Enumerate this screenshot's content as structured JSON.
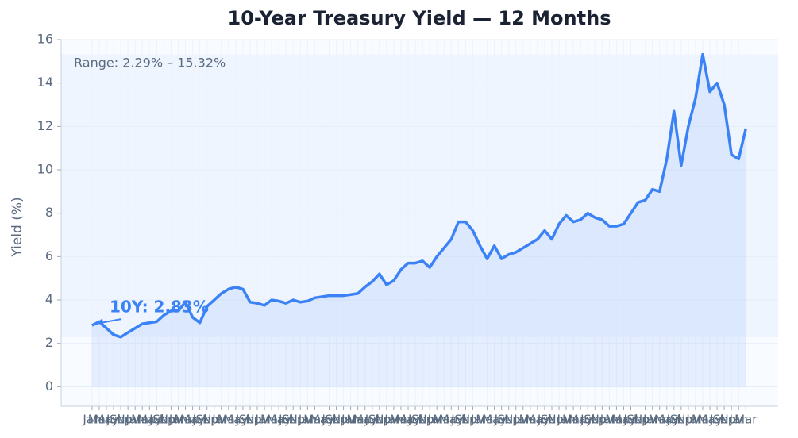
{
  "chart_data": {
    "type": "line",
    "title": "10-Year Treasury Yield — 12 Months",
    "y_label": "Yield (%)",
    "range_note": "Range: 2.29% – 15.32%",
    "annotation": "10Y: 2.83%",
    "band": [
      2.29,
      15.32
    ],
    "categories": [
      "Jan",
      "Mar",
      "May",
      "Jul",
      "Sep",
      "Nov",
      "Jan",
      "Mar",
      "May",
      "Jul",
      "Sep",
      "Nov",
      "Jan",
      "Mar",
      "May",
      "Jul",
      "Sep",
      "Nov",
      "Jan",
      "Mar",
      "May",
      "Jul",
      "Sep",
      "Nov",
      "Jan",
      "Mar",
      "May",
      "Jul",
      "Sep",
      "Nov",
      "Jan",
      "Mar",
      "May",
      "Jul",
      "Sep",
      "Nov",
      "Jan",
      "Mar",
      "May",
      "Jul",
      "Sep",
      "Nov",
      "Jan",
      "Mar",
      "May",
      "Jul",
      "Sep",
      "Nov",
      "Jan",
      "Mar",
      "May",
      "Jul",
      "Sep",
      "Nov",
      "Jan",
      "Mar",
      "May",
      "Jul",
      "Sep",
      "Nov",
      "Jan",
      "Mar",
      "May",
      "Jul",
      "Sep",
      "Nov",
      "Jan",
      "Mar",
      "May",
      "Jul",
      "Sep",
      "Nov",
      "Jan",
      "Mar",
      "May",
      "Jul",
      "Sep",
      "Nov",
      "Jan",
      "Mar",
      "May",
      "Jul",
      "Sep",
      "Nov",
      "Jan",
      "Mar",
      "May",
      "Jul",
      "Sep",
      "Nov",
      "Jan",
      "Mar"
    ],
    "series": [
      {
        "name": "10Y",
        "color": "#3b82f6",
        "values": [
          2.83,
          3.0,
          2.7,
          2.4,
          2.29,
          2.5,
          2.7,
          2.9,
          2.95,
          3.0,
          3.3,
          3.5,
          3.5,
          3.9,
          3.2,
          2.95,
          3.7,
          4.0,
          4.3,
          4.5,
          4.6,
          4.5,
          3.9,
          3.85,
          3.75,
          4.0,
          3.95,
          3.85,
          4.0,
          3.9,
          3.95,
          4.1,
          4.15,
          4.2,
          4.2,
          4.2,
          4.25,
          4.3,
          4.6,
          4.85,
          5.2,
          4.7,
          4.9,
          5.4,
          5.7,
          5.7,
          5.8,
          5.5,
          6.0,
          6.4,
          6.8,
          7.6,
          7.6,
          7.2,
          6.5,
          5.9,
          6.5,
          5.9,
          6.1,
          6.2,
          6.4,
          6.6,
          6.8,
          7.2,
          6.8,
          7.5,
          7.9,
          7.6,
          7.7,
          8.0,
          7.8,
          7.7,
          7.4,
          7.4,
          7.5,
          8.0,
          8.5,
          8.6,
          9.1,
          9.0,
          10.5,
          12.7,
          10.2,
          12.0,
          13.3,
          15.32,
          13.6,
          14.0,
          13.0,
          10.7,
          10.5,
          11.9
        ]
      }
    ],
    "xlim": [
      -4.3,
      95.5
    ],
    "ylim": [
      -0.9,
      16
    ],
    "yticks": [
      0,
      2,
      4,
      6,
      8,
      10,
      12,
      14,
      16
    ],
    "grid": true
  }
}
